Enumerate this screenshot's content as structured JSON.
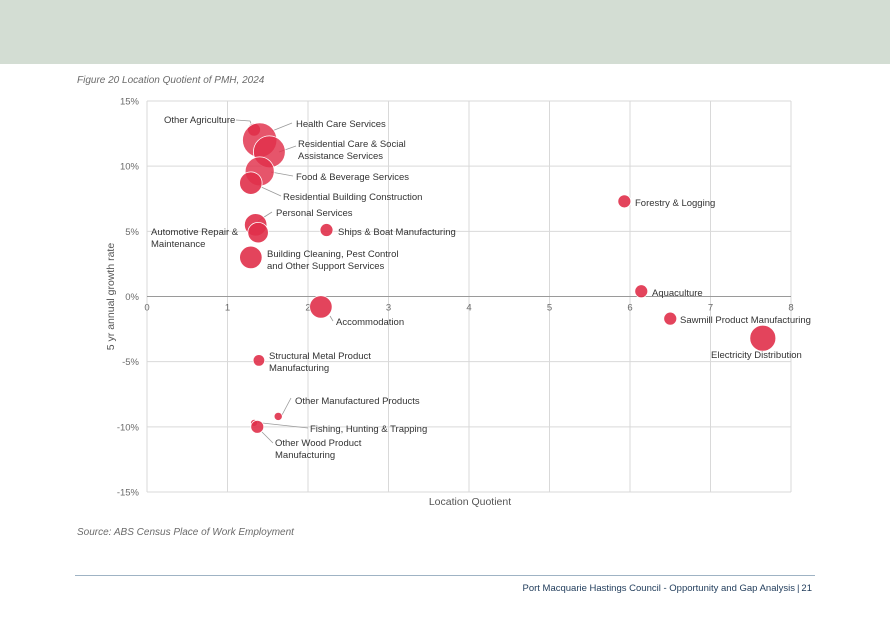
{
  "figure_caption": "Figure 20 Location Quotient of PMH, 2024",
  "source": "Source: ABS Census Place of Work Employment",
  "footer": {
    "text": "Port Macquarie Hastings Council - Opportunity and Gap Analysis",
    "page": "21"
  },
  "colors": {
    "banner": "#d3ddd3",
    "bubble": "#e0304a",
    "grid": "#d9d9d9",
    "leader": "#9a9a9a"
  },
  "chart_data": {
    "type": "scatter",
    "xlabel": "Location Quotient",
    "ylabel": "5 yr annual growth rate",
    "xlim": [
      0,
      8
    ],
    "ylim": [
      -15,
      15
    ],
    "x_ticks": [
      "0",
      "1",
      "2",
      "3",
      "4",
      "5",
      "6",
      "7",
      "8"
    ],
    "y_ticks": [
      "15%",
      "10%",
      "5%",
      "0%",
      "-5%",
      "-10%",
      "-15%"
    ],
    "grid": true,
    "legend": "none",
    "points": [
      {
        "label": "Other Agriculture",
        "x": 1.33,
        "y": 12.8,
        "size": 1
      },
      {
        "label": "Health Care Services",
        "x": 1.4,
        "y": 12.0,
        "size": 7
      },
      {
        "label": "Residential Care & Social Assistance Services",
        "x": 1.52,
        "y": 11.1,
        "size": 6
      },
      {
        "label": "Food & Beverage Services",
        "x": 1.4,
        "y": 9.6,
        "size": 5
      },
      {
        "label": "Residential Building Construction",
        "x": 1.29,
        "y": 8.7,
        "size": 3
      },
      {
        "label": "Personal Services",
        "x": 1.35,
        "y": 5.5,
        "size": 3
      },
      {
        "label": "Automotive Repair & Maintenance",
        "x": 1.38,
        "y": 4.9,
        "size": 2.5
      },
      {
        "label": "Ships & Boat Manufacturing",
        "x": 2.23,
        "y": 5.1,
        "size": 1
      },
      {
        "label": "Building Cleaning, Pest Control and Other Support Services",
        "x": 1.29,
        "y": 3.0,
        "size": 3
      },
      {
        "label": "Accommodation",
        "x": 2.16,
        "y": -0.8,
        "size": 3
      },
      {
        "label": "Forestry & Logging",
        "x": 5.93,
        "y": 7.3,
        "size": 1
      },
      {
        "label": "Aquaculture",
        "x": 6.14,
        "y": 0.4,
        "size": 1
      },
      {
        "label": "Sawmill Product Manufacturing",
        "x": 6.5,
        "y": -1.7,
        "size": 1
      },
      {
        "label": "Electricity Distribution",
        "x": 7.65,
        "y": -3.2,
        "size": 4
      },
      {
        "label": "Structural Metal Product Manufacturing",
        "x": 1.39,
        "y": -4.9,
        "size": 0.8
      },
      {
        "label": "Other Manufactured Products",
        "x": 1.63,
        "y": -9.2,
        "size": 0.4
      },
      {
        "label": "Fishing, Hunting & Trapping",
        "x": 1.33,
        "y": -9.7,
        "size": 0.3
      },
      {
        "label": "Other Wood Product Manufacturing",
        "x": 1.37,
        "y": -10.0,
        "size": 1
      }
    ]
  }
}
